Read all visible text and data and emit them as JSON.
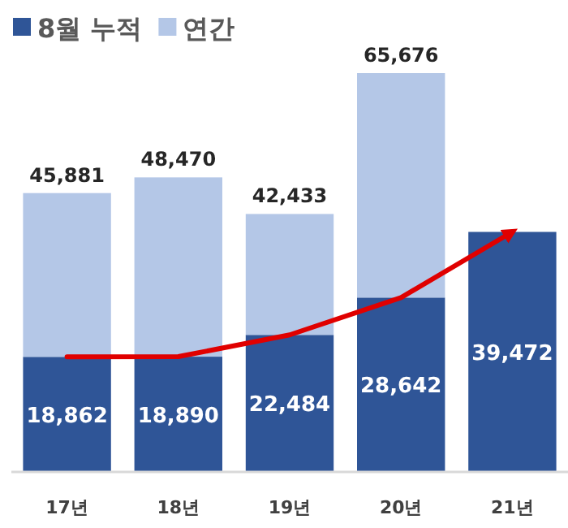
{
  "chart_data": {
    "type": "bar",
    "stacked": true,
    "categories": [
      "17년",
      "18년",
      "19년",
      "20년",
      "21년"
    ],
    "series": [
      {
        "name": "8월 누적",
        "color": "#2f5597",
        "values": [
          18862,
          18890,
          22484,
          28642,
          39472
        ],
        "value_labels": [
          "18,862",
          "18,890",
          "22,484",
          "28,642",
          "39,472"
        ]
      },
      {
        "name": "연간",
        "color": "#b4c7e7",
        "values": [
          27019,
          29580,
          19949,
          37034,
          null
        ]
      },
      {
        "type": "line",
        "color": "#e00000",
        "values": [
          18862,
          18890,
          22484,
          28642,
          39472
        ]
      }
    ],
    "totals": [
      "45,881",
      "48,470",
      "42,433",
      "65,676",
      null
    ],
    "legend": "top left"
  }
}
